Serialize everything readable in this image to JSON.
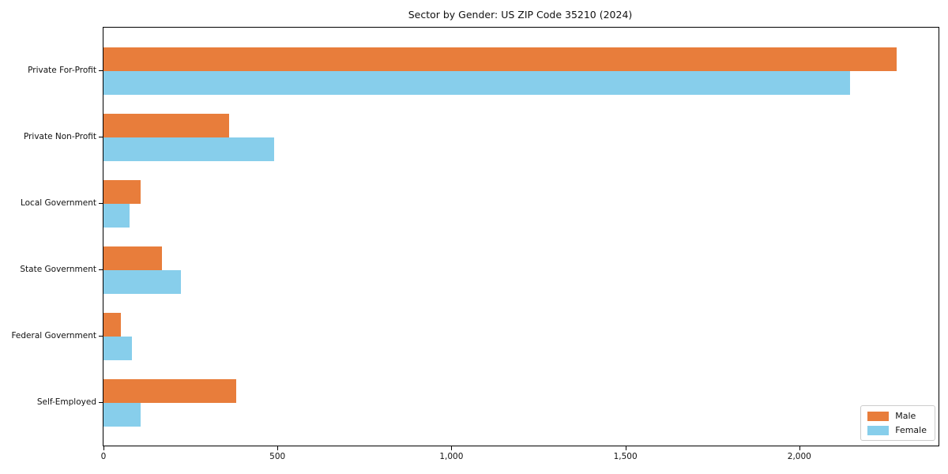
{
  "chart_data": {
    "type": "bar",
    "orientation": "horizontal",
    "title": "Sector by Gender: US ZIP Code 35210 (2024)",
    "categories": [
      "Private For-Profit",
      "Private Non-Profit",
      "Local Government",
      "State Government",
      "Federal Government",
      "Self-Employed"
    ],
    "series": [
      {
        "name": "Male",
        "color": "#E87D3B",
        "values": [
          2280,
          360,
          107,
          168,
          50,
          382
        ]
      },
      {
        "name": "Female",
        "color": "#87CEEB",
        "values": [
          2145,
          490,
          75,
          223,
          81,
          107
        ]
      }
    ],
    "xlabel": "",
    "ylabel": "",
    "xlim": [
      0,
      2400
    ],
    "xticks": [
      0,
      500,
      1000,
      1500,
      2000
    ],
    "xtick_labels": [
      "0",
      "500",
      "1,000",
      "1,500",
      "2,000"
    ],
    "grid": false,
    "legend": {
      "position": "lower right",
      "entries": [
        "Male",
        "Female"
      ]
    }
  },
  "colors": {
    "male": "#E87D3B",
    "female": "#87CEEB",
    "axis": "#000000",
    "legend_border": "#cccccc",
    "background": "#ffffff"
  }
}
